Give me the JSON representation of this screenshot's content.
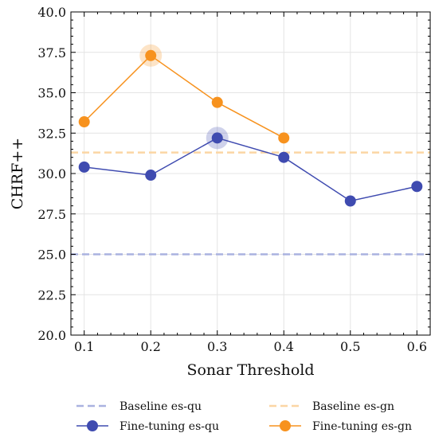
{
  "chart_data": {
    "type": "line",
    "xlabel": "Sonar Threshold",
    "ylabel": "CHRF++",
    "xlim": [
      0.08,
      0.62
    ],
    "ylim": [
      20.0,
      40.0
    ],
    "xticks": [
      0.1,
      0.2,
      0.3,
      0.4,
      0.5,
      0.6
    ],
    "xtick_labels": [
      "0.1",
      "0.2",
      "0.3",
      "0.4",
      "0.5",
      "0.6"
    ],
    "yticks": [
      20.0,
      22.5,
      25.0,
      27.5,
      30.0,
      32.5,
      35.0,
      37.5,
      40.0
    ],
    "ytick_labels": [
      "20.0",
      "22.5",
      "25.0",
      "27.5",
      "30.0",
      "32.5",
      "35.0",
      "37.5",
      "40.0"
    ],
    "grid": true,
    "legend_position": "bottom, outside plot, two columns",
    "baselines": [
      {
        "name": "Baseline es-qu",
        "y": 25.0,
        "color": "#aab2e0"
      },
      {
        "name": "Baseline es-gn",
        "y": 31.3,
        "color": "#fbd6a4"
      }
    ],
    "series": [
      {
        "name": "Fine-tuning es-qu",
        "color": "#3f4bb0",
        "x": [
          0.1,
          0.2,
          0.3,
          0.4,
          0.5,
          0.6
        ],
        "values": [
          30.4,
          29.9,
          32.2,
          31.0,
          28.3,
          29.2
        ],
        "highlight_x": 0.3
      },
      {
        "name": "Fine-tuning es-gn",
        "color": "#f7921e",
        "x": [
          0.1,
          0.2,
          0.3,
          0.4
        ],
        "values": [
          33.2,
          37.3,
          34.4,
          32.2
        ],
        "highlight_x": 0.2
      }
    ]
  }
}
